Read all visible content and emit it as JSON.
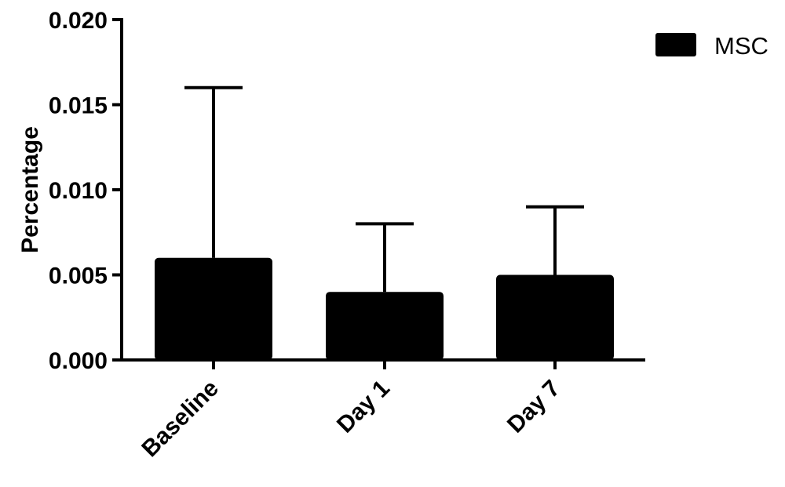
{
  "chart_data": {
    "type": "bar",
    "title": "",
    "xlabel": "",
    "ylabel": "Percentage",
    "ylim": [
      0,
      0.02
    ],
    "yticks": [
      "0.000",
      "0.005",
      "0.010",
      "0.015",
      "0.020"
    ],
    "categories": [
      "Baseline",
      "Day 1",
      "Day 7"
    ],
    "series": [
      {
        "name": "MSC",
        "values": [
          0.006,
          0.004,
          0.005
        ],
        "error_upper": [
          0.016,
          0.008,
          0.009
        ],
        "color": "#000000"
      }
    ],
    "legend_position": "top-right",
    "grid": false
  }
}
